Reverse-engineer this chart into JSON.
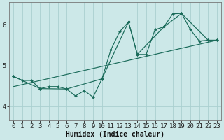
{
  "xlabel": "Humidex (Indice chaleur)",
  "bg_color": "#cce8e8",
  "line_color": "#1a6b5a",
  "grid_color": "#aad0d0",
  "xlim": [
    -0.5,
    23.5
  ],
  "ylim": [
    3.65,
    6.55
  ],
  "yticks": [
    4,
    5,
    6
  ],
  "xticks": [
    0,
    1,
    2,
    3,
    4,
    5,
    6,
    7,
    8,
    9,
    10,
    11,
    12,
    13,
    14,
    15,
    16,
    17,
    18,
    19,
    20,
    21,
    22,
    23
  ],
  "series1": {
    "x": [
      0,
      1,
      2,
      3,
      4,
      5,
      6,
      7,
      8,
      9,
      10,
      11,
      12,
      13,
      14,
      15,
      16,
      17,
      18,
      19,
      20,
      21,
      22,
      23
    ],
    "y": [
      4.73,
      4.63,
      4.63,
      4.43,
      4.48,
      4.48,
      4.42,
      4.25,
      4.38,
      4.22,
      4.67,
      5.38,
      5.83,
      6.07,
      5.27,
      5.27,
      5.88,
      5.95,
      6.27,
      6.28,
      5.88,
      5.6,
      5.62,
      5.62
    ]
  },
  "series2": {
    "x": [
      0,
      3,
      6,
      10,
      13,
      14,
      17,
      19,
      22,
      23
    ],
    "y": [
      4.73,
      4.43,
      4.42,
      4.67,
      6.07,
      5.27,
      5.95,
      6.28,
      5.62,
      5.62
    ]
  },
  "series3": {
    "x": [
      0,
      23
    ],
    "y": [
      4.48,
      5.62
    ]
  }
}
